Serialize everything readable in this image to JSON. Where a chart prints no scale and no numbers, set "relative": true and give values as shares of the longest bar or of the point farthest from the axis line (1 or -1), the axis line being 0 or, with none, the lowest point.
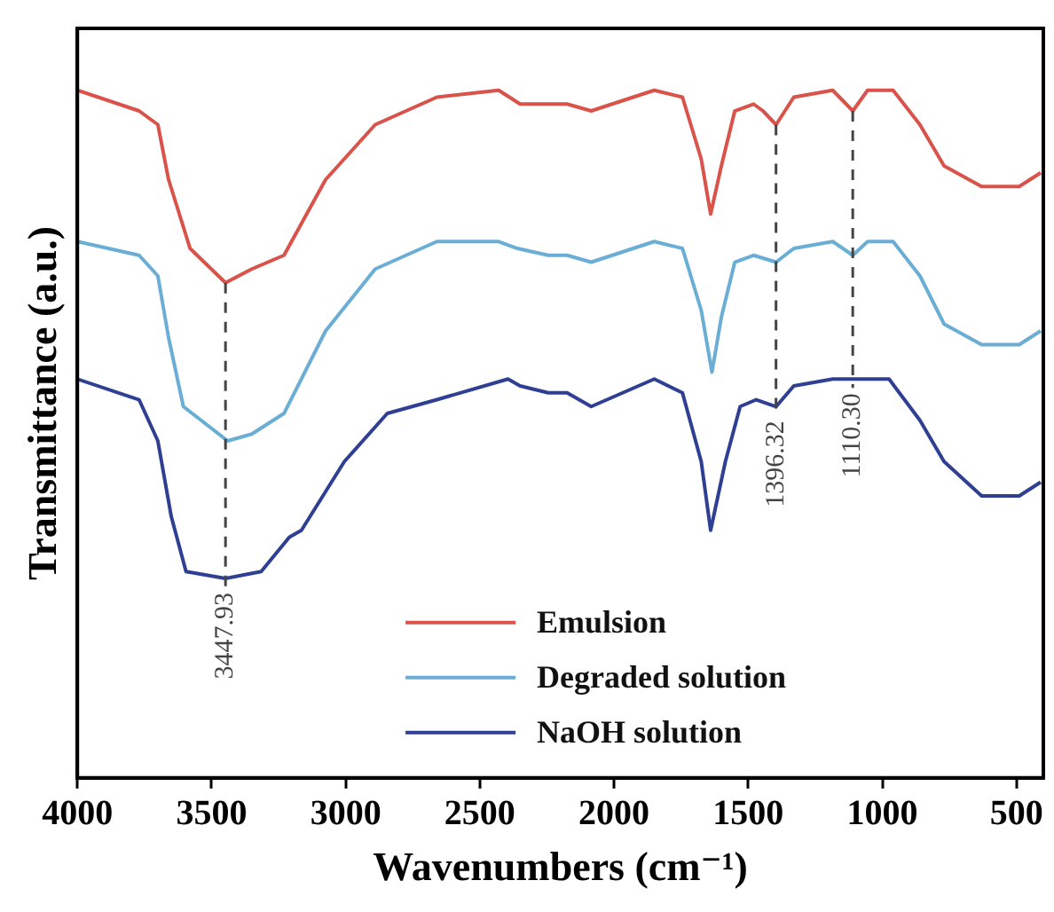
{
  "chart_data": {
    "type": "line",
    "xlabel": "Wavenumbers (cm⁻¹)",
    "ylabel": "Transmittance (a.u.)",
    "relative": true,
    "xlim": [
      4000,
      400
    ],
    "xticks": [
      4000,
      3500,
      3000,
      2500,
      2000,
      1500,
      1000,
      500
    ],
    "legend": "bottom",
    "marker": "none",
    "line_style": "solid",
    "series": [
      {
        "name": "Emulsion",
        "color": "#d9534a",
        "x": [
          4000,
          3770,
          3700,
          3660,
          3580,
          3448,
          3350,
          3230,
          3075,
          2890,
          2660,
          2430,
          2350,
          2245,
          2175,
          2085,
          1850,
          1745,
          1675,
          1640,
          1600,
          1550,
          1480,
          1445,
          1396,
          1330,
          1185,
          1110,
          1055,
          960,
          860,
          770,
          630,
          490,
          410
        ],
        "values": [
          1.0,
          0.97,
          0.95,
          0.87,
          0.77,
          0.72,
          0.74,
          0.76,
          0.87,
          0.95,
          0.99,
          1.0,
          0.98,
          0.98,
          0.98,
          0.97,
          1.0,
          0.99,
          0.9,
          0.82,
          0.89,
          0.97,
          0.98,
          0.97,
          0.95,
          0.99,
          1.0,
          0.97,
          1.0,
          1.0,
          0.95,
          0.89,
          0.86,
          0.86,
          0.88
        ]
      },
      {
        "name": "Degraded solution",
        "color": "#6aaed6",
        "x": [
          4000,
          3770,
          3700,
          3660,
          3605,
          3440,
          3350,
          3230,
          3075,
          2890,
          2660,
          2430,
          2360,
          2245,
          2175,
          2085,
          1850,
          1745,
          1675,
          1635,
          1600,
          1550,
          1480,
          1396,
          1330,
          1185,
          1110,
          1055,
          960,
          860,
          770,
          630,
          490,
          410
        ],
        "values": [
          0.78,
          0.76,
          0.73,
          0.64,
          0.54,
          0.49,
          0.5,
          0.53,
          0.65,
          0.74,
          0.78,
          0.78,
          0.77,
          0.76,
          0.76,
          0.75,
          0.78,
          0.77,
          0.68,
          0.59,
          0.67,
          0.75,
          0.76,
          0.75,
          0.77,
          0.78,
          0.76,
          0.78,
          0.78,
          0.73,
          0.66,
          0.63,
          0.63,
          0.65
        ]
      },
      {
        "name": "NaOH solution",
        "color": "#2f3f93",
        "x": [
          4000,
          3770,
          3700,
          3650,
          3595,
          3448,
          3315,
          3210,
          3165,
          3005,
          2845,
          2660,
          2395,
          2350,
          2245,
          2175,
          2085,
          1850,
          1745,
          1675,
          1640,
          1585,
          1530,
          1470,
          1396,
          1330,
          1185,
          975,
          860,
          770,
          630,
          490,
          410
        ],
        "values": [
          0.58,
          0.55,
          0.49,
          0.38,
          0.3,
          0.29,
          0.3,
          0.35,
          0.36,
          0.46,
          0.53,
          0.55,
          0.58,
          0.57,
          0.56,
          0.56,
          0.54,
          0.58,
          0.56,
          0.46,
          0.36,
          0.46,
          0.54,
          0.55,
          0.54,
          0.57,
          0.58,
          0.58,
          0.52,
          0.46,
          0.41,
          0.41,
          0.43
        ]
      }
    ],
    "ref_lines": [
      {
        "axis": "x",
        "value": 3447.93,
        "label": "3447.93",
        "color": "#444444",
        "line_style": "dashed"
      },
      {
        "axis": "x",
        "value": 1396.32,
        "label": "1396.32",
        "color": "#444444",
        "line_style": "dashed"
      },
      {
        "axis": "x",
        "value": 1110.3,
        "label": "1110.30",
        "color": "#444444",
        "line_style": "dashed"
      }
    ]
  }
}
